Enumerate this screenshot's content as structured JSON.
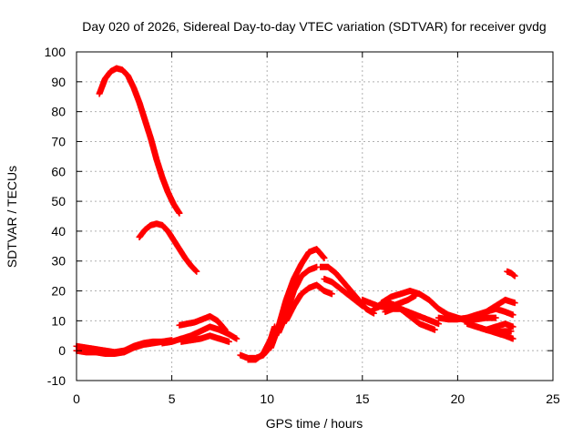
{
  "chart_data": {
    "type": "scatter",
    "title": "Day 020 of 2026, Sidereal Day-to-day VTEC variation (SDTVAR) for receiver gvdg",
    "xlabel": "GPS time / hours",
    "ylabel": "SDTVAR / TECUs",
    "xlim": [
      0,
      25
    ],
    "ylim": [
      -10,
      100
    ],
    "xticks": [
      0,
      5,
      10,
      15,
      20,
      25
    ],
    "yticks": [
      -10,
      0,
      10,
      20,
      30,
      40,
      50,
      60,
      70,
      80,
      90,
      100
    ],
    "grid": true,
    "marker": "plus",
    "series_color": "#ff0000",
    "series": [
      {
        "name": "arc-high-peak",
        "x": [
          1.2,
          1.5,
          1.8,
          2.1,
          2.4,
          2.7,
          3.0,
          3.3,
          3.6,
          3.9,
          4.2,
          4.5,
          4.8,
          5.1,
          5.4
        ],
        "y": [
          86,
          91,
          93.5,
          94.5,
          94,
          92,
          88,
          83,
          77,
          71,
          64,
          58,
          53,
          49,
          46
        ]
      },
      {
        "name": "arc-mid-peak",
        "x": [
          3.3,
          3.6,
          3.9,
          4.2,
          4.5,
          4.8,
          5.1,
          5.4,
          5.7,
          6.0,
          6.3
        ],
        "y": [
          38,
          40.5,
          42,
          42.5,
          42,
          40,
          37,
          34,
          31,
          28.5,
          26.5
        ]
      },
      {
        "name": "arc-early-low-1",
        "x": [
          0,
          0.5,
          1.0,
          1.5,
          2.0,
          2.5,
          3.0,
          3.5,
          4.0,
          4.5,
          5.0
        ],
        "y": [
          1.5,
          1.0,
          0.5,
          0,
          -0.5,
          0,
          1.5,
          2.5,
          3,
          3,
          3.5
        ]
      },
      {
        "name": "arc-early-low-2",
        "x": [
          0,
          0.5,
          1.0,
          1.5,
          2.0,
          2.5,
          3.0,
          3.5,
          4.0,
          4.5
        ],
        "y": [
          0,
          -0.5,
          -0.5,
          -1.0,
          -1.0,
          -0.5,
          1.0,
          2.0,
          2.5,
          3.0
        ]
      },
      {
        "name": "arc-6h-upper",
        "x": [
          5.4,
          5.8,
          6.2,
          6.6,
          7.0,
          7.4,
          7.8
        ],
        "y": [
          8.5,
          9,
          9.5,
          10.5,
          11.5,
          10,
          7
        ]
      },
      {
        "name": "arc-6h-mid",
        "x": [
          4.5,
          5.0,
          5.5,
          6.0,
          6.5,
          7.0,
          7.5,
          8.0,
          8.4
        ],
        "y": [
          2.5,
          3,
          4,
          5,
          6.5,
          8,
          7,
          5.5,
          4
        ]
      },
      {
        "name": "arc-6h-low",
        "x": [
          5.5,
          6.0,
          6.5,
          7.0,
          7.5,
          8.0
        ],
        "y": [
          3,
          3.5,
          4,
          5,
          4,
          3
        ]
      },
      {
        "name": "arc-9h-dip-1",
        "x": [
          8.6,
          9.0,
          9.4,
          9.8,
          10.2
        ],
        "y": [
          -1.5,
          -2.5,
          -2.5,
          -1.5,
          1.5
        ]
      },
      {
        "name": "arc-9h-dip-2",
        "x": [
          9.0,
          9.4,
          9.8,
          10.2,
          10.4
        ],
        "y": [
          -3,
          -3,
          -1,
          4,
          8
        ]
      },
      {
        "name": "arc-11h-rise-1",
        "x": [
          10.2,
          10.6,
          11.0,
          11.4,
          11.8,
          12.2,
          12.6,
          13.0
        ],
        "y": [
          1,
          8,
          17,
          24,
          29,
          33,
          34,
          31
        ]
      },
      {
        "name": "arc-11h-rise-2",
        "x": [
          10.6,
          11.0,
          11.4,
          11.8,
          12.2,
          12.6
        ],
        "y": [
          6,
          12,
          20,
          25,
          27,
          28
        ]
      },
      {
        "name": "arc-11h-rise-3",
        "x": [
          11.0,
          11.4,
          11.8,
          12.2,
          12.6,
          13.0,
          13.4
        ],
        "y": [
          10,
          15,
          19,
          21,
          22,
          20,
          19
        ]
      },
      {
        "name": "arc-13h-fall",
        "x": [
          12.8,
          13.2,
          13.6,
          14.0,
          14.4,
          14.8,
          15.2,
          15.6
        ],
        "y": [
          28,
          28,
          26,
          23,
          20,
          17,
          14,
          12.5
        ]
      },
      {
        "name": "arc-13h-fall-2",
        "x": [
          13.0,
          13.4,
          13.8,
          14.2,
          14.6,
          15.0
        ],
        "y": [
          24,
          23,
          21,
          19,
          17,
          15
        ]
      },
      {
        "name": "arc-15h-flat",
        "x": [
          15.0,
          15.4,
          15.8,
          16.2,
          16.6,
          17.0,
          17.4,
          17.8
        ],
        "y": [
          17,
          16,
          15,
          14.5,
          15,
          16,
          17,
          18.5
        ]
      },
      {
        "name": "arc-16h-wave-1",
        "x": [
          15.6,
          16.0,
          16.4,
          16.8,
          17.2,
          17.6,
          18.0,
          18.4,
          18.8
        ],
        "y": [
          14,
          15,
          16,
          15,
          13,
          11,
          9,
          8,
          7
        ]
      },
      {
        "name": "arc-16h-wave-2",
        "x": [
          16.2,
          16.6,
          17.0,
          17.4,
          17.8,
          18.2,
          18.6,
          19.0
        ],
        "y": [
          13,
          14,
          14,
          13,
          12,
          11,
          10,
          9
        ]
      },
      {
        "name": "arc-16h-wave-3",
        "x": [
          16.0,
          16.5,
          17.0,
          17.5,
          18.0,
          18.5,
          19.0,
          19.5,
          20.0,
          20.5,
          21.0,
          21.5,
          22.0
        ],
        "y": [
          16,
          18,
          19,
          20,
          19,
          17,
          14,
          12,
          11,
          10,
          10.5,
          11,
          11
        ]
      },
      {
        "name": "arc-20h-a",
        "x": [
          19.0,
          19.5,
          20.0,
          20.5,
          21.0,
          21.5,
          22.0,
          22.5,
          23.0
        ],
        "y": [
          11,
          10.5,
          10.5,
          11,
          12,
          13,
          15,
          17,
          16
        ]
      },
      {
        "name": "arc-21h-b",
        "x": [
          20.5,
          21.0,
          21.5,
          22.0,
          22.5,
          22.9
        ],
        "y": [
          9,
          8,
          7,
          8,
          9,
          8
        ]
      },
      {
        "name": "arc-21h-c",
        "x": [
          21.0,
          21.5,
          22.0,
          22.5,
          22.9
        ],
        "y": [
          8,
          7,
          6,
          5,
          4
        ]
      },
      {
        "name": "arc-22h-d",
        "x": [
          21.5,
          22.0,
          22.5,
          22.9
        ],
        "y": [
          13,
          14,
          13,
          12
        ]
      },
      {
        "name": "arc-22h-e",
        "x": [
          22.0,
          22.4,
          22.8
        ],
        "y": [
          6,
          6.5,
          6.5
        ]
      },
      {
        "name": "arc-23h-tail",
        "x": [
          22.6,
          22.8,
          23.0
        ],
        "y": [
          26.5,
          26,
          25
        ]
      }
    ]
  }
}
